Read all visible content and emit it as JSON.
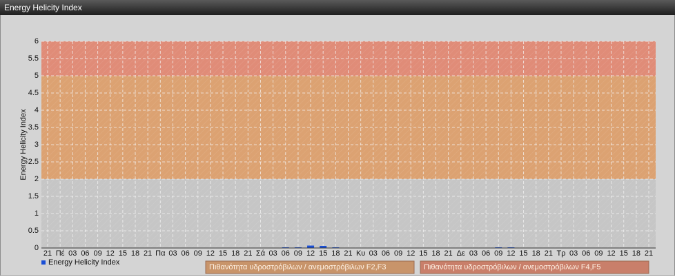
{
  "chart_data": {
    "type": "bar",
    "title": "Energy Helicity Index",
    "ylabel": "Energy Helicity Index",
    "categories": [
      "21",
      "Πέ",
      "03",
      "06",
      "09",
      "12",
      "15",
      "18",
      "21",
      "Πα",
      "03",
      "06",
      "09",
      "12",
      "15",
      "18",
      "21",
      "Σά",
      "03",
      "06",
      "09",
      "12",
      "15",
      "18",
      "21",
      "Κυ",
      "03",
      "06",
      "09",
      "12",
      "15",
      "18",
      "21",
      "Δε",
      "03",
      "06",
      "09",
      "12",
      "15",
      "18",
      "21",
      "Τρ",
      "03",
      "06",
      "09",
      "12",
      "15",
      "18",
      "21"
    ],
    "series": [
      {
        "name": "Energy Helicity Index",
        "color": "#1a4fd6",
        "values": [
          0.01,
          0.01,
          0.01,
          0.01,
          0.01,
          0.01,
          0.01,
          0.01,
          0.01,
          0.01,
          0.01,
          0.01,
          0.01,
          0.01,
          0.01,
          0.01,
          0.01,
          0.01,
          0.01,
          0.02,
          0.02,
          0.07,
          0.06,
          0.02,
          0.01,
          0.01,
          0.01,
          0.01,
          0.01,
          0.01,
          0.01,
          0.01,
          0.01,
          0.01,
          0.01,
          0.01,
          0.02,
          0.02,
          0.01,
          0.01,
          0.01,
          0.01,
          0.01,
          0.01,
          0.01,
          0.01,
          0.01,
          0.01,
          0.01
        ]
      }
    ],
    "bands": [
      {
        "from": 0,
        "to": 2,
        "color": "#c6c6c6"
      },
      {
        "from": 2,
        "to": 5,
        "color": "#dca272",
        "legend_color": "#c8946a",
        "label": "Πιθανότητα υδροστρόβιλων / ανεμοστρόβιλων F2,F3"
      },
      {
        "from": 5,
        "to": 6,
        "color": "#e08c78",
        "legend_color": "#c97f6a",
        "label": "Πιθανότητα υδροστρόβιλων / ανεμοστρόβιλων F4,F5"
      }
    ],
    "ylim": [
      0,
      6
    ],
    "yticks": [
      0,
      0.5,
      1,
      1.5,
      2,
      2.5,
      3,
      3.5,
      4,
      4.5,
      5,
      5.5,
      6
    ],
    "grid": true
  }
}
